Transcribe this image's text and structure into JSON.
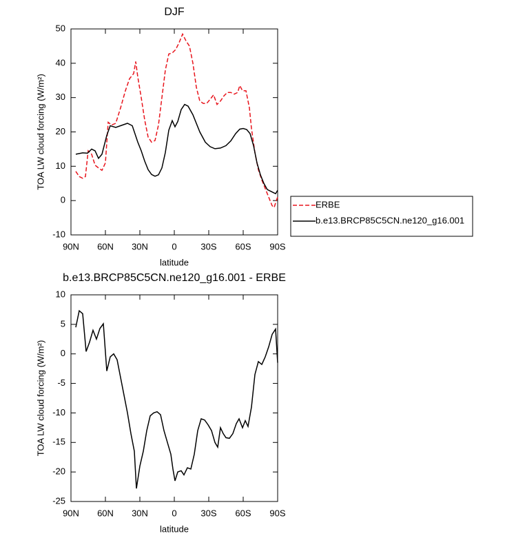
{
  "chart_data": [
    {
      "type": "line",
      "title": "DJF",
      "xlabel": "latitude",
      "ylabel": "TOA LW cloud forcing (W/m²)",
      "xlim": [
        90,
        -90
      ],
      "xticks": [
        {
          "value": 90,
          "label": "90N"
        },
        {
          "value": 60,
          "label": "60N"
        },
        {
          "value": 30,
          "label": "30N"
        },
        {
          "value": 0,
          "label": "0"
        },
        {
          "value": -30,
          "label": "30S"
        },
        {
          "value": -60,
          "label": "60S"
        },
        {
          "value": -90,
          "label": "90S"
        }
      ],
      "ylim": [
        -10,
        50
      ],
      "yticks": [
        -10,
        0,
        10,
        20,
        30,
        40,
        50
      ],
      "legend": "outside right",
      "series": [
        {
          "name": "ERBE",
          "color": "#e8141c",
          "line_style": "dashed",
          "x": [
            85.8,
            82.8,
            79.8,
            77.4,
            75,
            72,
            69,
            66,
            63,
            60,
            57.6,
            54.6,
            51,
            46.8,
            42.6,
            39,
            35.4,
            33.6,
            31.8,
            28.8,
            25.8,
            22.8,
            19.8,
            16.8,
            13.8,
            10.8,
            7.8,
            4.8,
            1.8,
            -1.2,
            -4.2,
            -7.2,
            -10.2,
            -13.2,
            -16.2,
            -19.2,
            -22.2,
            -25.2,
            -28.2,
            -31.2,
            -34.2,
            -37.2,
            -40.2,
            -43.2,
            -46.2,
            -49.2,
            -52.2,
            -55.2,
            -57,
            -59.4,
            -62.4,
            -65.4,
            -67.2,
            -70.2,
            -73.2,
            -76.2,
            -79.2,
            -82.2,
            -85.2,
            -87,
            -88.8,
            -90
          ],
          "values": [
            8.5,
            7,
            6.5,
            7,
            14.5,
            13.5,
            10.3,
            9.5,
            8.8,
            11,
            22.8,
            22,
            22.5,
            27,
            32,
            35.5,
            37,
            40.5,
            36,
            30,
            23.5,
            18.5,
            17,
            17.5,
            22,
            30,
            38,
            42.7,
            43,
            44,
            46,
            48.5,
            46.5,
            45,
            40,
            33,
            29,
            28.3,
            28.3,
            29.5,
            30.8,
            28,
            29,
            30.5,
            31.5,
            31.5,
            31,
            31.5,
            33.5,
            32,
            32,
            27,
            21,
            14,
            9,
            6,
            3.5,
            1,
            -1.5,
            -2,
            0,
            1
          ]
        },
        {
          "name": "b.e13.BRCP85C5CN.ne120_g16.001",
          "color": "#000000",
          "line_style": "solid",
          "x": [
            85.8,
            79.8,
            75.6,
            72,
            69,
            66,
            63,
            58.8,
            55.8,
            51,
            46.8,
            40.8,
            36.6,
            31.8,
            28.8,
            25.8,
            22.8,
            19.8,
            16.8,
            13.8,
            10.8,
            7.8,
            4.8,
            1.8,
            -0.6,
            -3,
            -6,
            -9,
            -12,
            -16.2,
            -22.2,
            -27,
            -31.2,
            -35.4,
            -40.2,
            -45,
            -49.2,
            -53.4,
            -57,
            -60,
            -63,
            -66,
            -69,
            -72,
            -75,
            -78,
            -81,
            -85.2,
            -88.2,
            -90
          ],
          "values": [
            13.5,
            13.9,
            13.8,
            15,
            14.5,
            12.3,
            13.5,
            19,
            21.8,
            21.3,
            21.8,
            22.5,
            21.8,
            17,
            14.5,
            11.5,
            9,
            7.6,
            7.1,
            7.5,
            9.5,
            14,
            20.5,
            23.3,
            21.5,
            23,
            26.5,
            28,
            27.5,
            25,
            20,
            17,
            15.7,
            15.1,
            15.3,
            16,
            17.4,
            19.5,
            20.8,
            21,
            20.7,
            19.5,
            16,
            11,
            7.5,
            5,
            3.2,
            2.5,
            2,
            3
          ]
        }
      ]
    },
    {
      "type": "line",
      "title": "b.e13.BRCP85C5CN.ne120_g16.001 - ERBE",
      "xlabel": "latitude",
      "ylabel": "TOA LW cloud forcing (W/m²)",
      "xlim": [
        90,
        -90
      ],
      "xticks": [
        {
          "value": 90,
          "label": "90N"
        },
        {
          "value": 60,
          "label": "60N"
        },
        {
          "value": 30,
          "label": "30N"
        },
        {
          "value": 0,
          "label": "0"
        },
        {
          "value": -30,
          "label": "30S"
        },
        {
          "value": -60,
          "label": "60S"
        },
        {
          "value": -90,
          "label": "90S"
        }
      ],
      "ylim": [
        -25,
        10
      ],
      "yticks": [
        -25,
        -20,
        -15,
        -10,
        -5,
        0,
        5,
        10
      ],
      "series": [
        {
          "color": "#000000",
          "line_style": "solid",
          "x": [
            85.8,
            82.8,
            79.8,
            76.8,
            73.8,
            70.8,
            67.8,
            64.8,
            61.8,
            58.8,
            55.8,
            52.8,
            49.8,
            46.8,
            43.8,
            40.8,
            37.8,
            34.8,
            33,
            30,
            27,
            24,
            21,
            18,
            15,
            12,
            9,
            6,
            3,
            1.2,
            -0.6,
            -3,
            -6,
            -8.4,
            -11.4,
            -14.4,
            -17.4,
            -20.4,
            -23.4,
            -26.4,
            -29.4,
            -32.4,
            -35.4,
            -37.8,
            -40.2,
            -42.6,
            -45,
            -48,
            -51,
            -54,
            -56.4,
            -59.4,
            -61.8,
            -64.2,
            -67.2,
            -70.2,
            -73.2,
            -76.2,
            -79.2,
            -82.2,
            -85.2,
            -88.2,
            -90
          ],
          "values": [
            4.5,
            7.3,
            6.8,
            0.4,
            2,
            4,
            2.5,
            4.3,
            5.1,
            -2.9,
            -0.5,
            0,
            -1,
            -4,
            -7,
            -10,
            -13.5,
            -16.5,
            -22.8,
            -19,
            -16.5,
            -13,
            -10.5,
            -10,
            -9.8,
            -10.3,
            -13,
            -15,
            -17,
            -19.5,
            -21.5,
            -20,
            -19.8,
            -20.5,
            -19.3,
            -19.5,
            -17,
            -13,
            -11,
            -11.2,
            -12,
            -13,
            -15,
            -15.8,
            -12.5,
            -13.5,
            -14.2,
            -14.3,
            -13.5,
            -11.8,
            -11,
            -12.5,
            -11.3,
            -12.3,
            -9,
            -3.5,
            -1.3,
            -1.8,
            -0.5,
            1.2,
            3.3,
            4.2,
            -1.5
          ]
        }
      ]
    }
  ]
}
